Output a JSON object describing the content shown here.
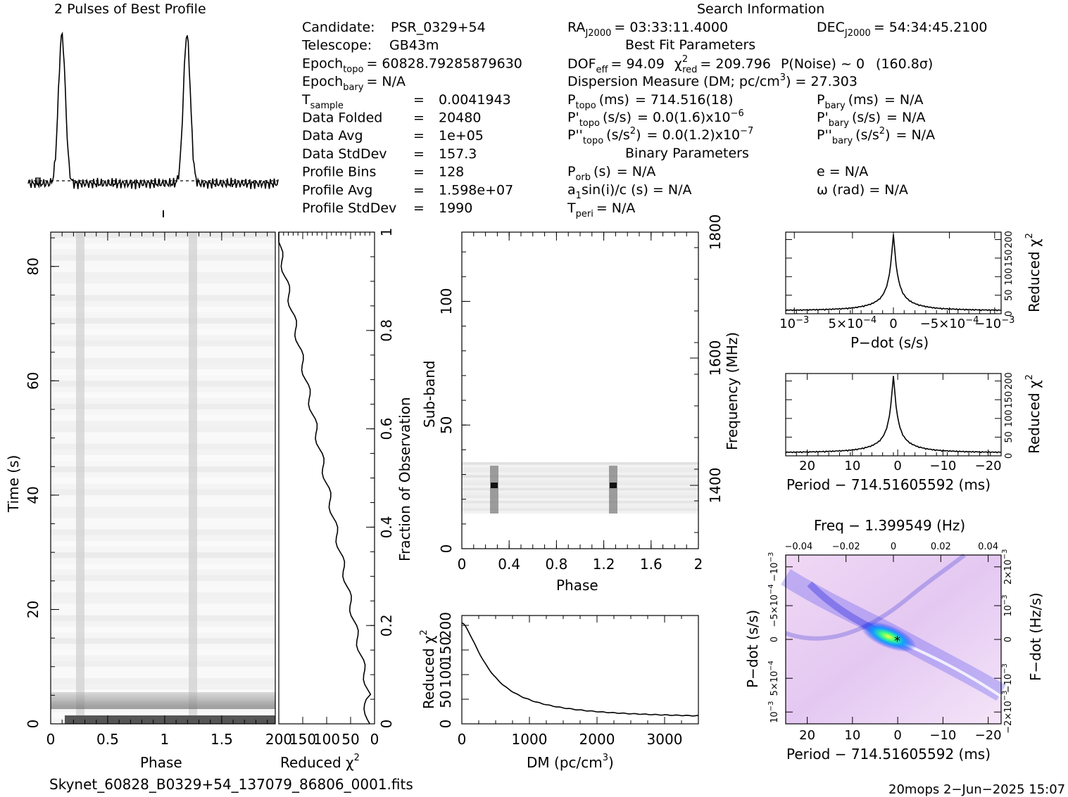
{
  "profile_title": "2 Pulses of Best Profile",
  "search_title": "Search Information",
  "info_col1": [
    {
      "label": "Candidate:",
      "value": "PSR_0329+54"
    },
    {
      "label": "Telescope:",
      "value": "GB43m"
    },
    {
      "label": "Epoch",
      "sub": "topo",
      "eq": "= 60828.79285879630"
    },
    {
      "label": "Epoch",
      "sub": "bary",
      "eq": "= N/A"
    },
    {
      "label": "T",
      "sub": "sample",
      "eq": "=",
      "value": "0.0041943"
    },
    {
      "label": "Data Folded",
      "eq": "=",
      "value": "20480"
    },
    {
      "label": "Data Avg",
      "eq": "=",
      "value": "1e+05"
    },
    {
      "label": "Data StdDev",
      "eq": "=",
      "value": "157.3"
    },
    {
      "label": "Profile Bins",
      "eq": "=",
      "value": "128"
    },
    {
      "label": "Profile Avg",
      "eq": "=",
      "value": "1.598e+07"
    },
    {
      "label": "Profile StdDev",
      "eq": "=",
      "value": "1990"
    }
  ],
  "ra": {
    "label": "RA",
    "sub": "J2000",
    "value": "= 03:33:11.4000"
  },
  "dec": {
    "label": "DEC",
    "sub": "J2000",
    "value": "= 54:34:45.2100"
  },
  "best_fit_title": "Best Fit Parameters",
  "dof": "DOF",
  "dof_sub": "eff",
  "dof_value": "= 94.09",
  "chi_label": "χ",
  "chi_sup": "2",
  "chi_sub": "red",
  "chi_value": "= 209.796",
  "pnoise": "P(Noise) ~ 0",
  "sigma": "(160.8σ)",
  "dm_text": "Dispersion Measure (DM; pc/cm",
  "dm_sup": "3",
  "dm_value": ") = 27.303",
  "ptopo": {
    "label": "P",
    "sub": "topo",
    "unit": "(ms)",
    "value": "=  714.516(18)"
  },
  "pbary": {
    "label": "P",
    "sub": "bary",
    "unit": "(ms)",
    "value": "= N/A"
  },
  "pdtopo": {
    "label": "P'",
    "sub": "topo",
    "unit": "(s/s)",
    "value": "= 0.0(1.6)x10",
    "exp": "−6"
  },
  "pdbary": {
    "label": "P'",
    "sub": "bary",
    "unit": "(s/s)",
    "value": "= N/A"
  },
  "pddtopo": {
    "label": "P''",
    "sub": "topo",
    "unit": "(s/s",
    "sup": "2",
    "unit2": ")",
    "value": "= 0.0(1.2)x10",
    "exp": "−7"
  },
  "pddbary": {
    "label": "P''",
    "sub": "bary",
    "unit": "(s/s",
    "sup": "2",
    "unit2": ")",
    "value": "= N/A"
  },
  "binary_title": "Binary Parameters",
  "porb": {
    "label": "P",
    "sub": "orb",
    "unit": "(s)",
    "value": "= N/A"
  },
  "ecc": "e = N/A",
  "a1": {
    "label": "a",
    "sub": "1",
    "rest": "sin(i)/c (s) = N/A"
  },
  "omega": "ω (rad) = N/A",
  "tperi": {
    "label": "T",
    "sub": "peri",
    "value": "= N/A"
  },
  "axes": {
    "phase": "Phase",
    "time": "Time (s)",
    "reduced_chi": "Reduced χ",
    "chi_sup": "2",
    "fraction": "Fraction of Observation",
    "subband": "Sub-band",
    "frequency": "Frequency (MHz)",
    "dm": "DM (pc/cm",
    "dm_sup": "3",
    "dm_close": ")",
    "pdot": "P−dot (s/s)",
    "period": "Period − 714.51605592 (ms)",
    "freq_top": "Freq − 1.399549 (Hz)",
    "fdot": "F−dot (Hz/s)"
  },
  "ticks": {
    "phase_x": [
      "0",
      "0.5",
      "1",
      "1.5"
    ],
    "time_y": [
      "0",
      "20",
      "40",
      "60",
      "80"
    ],
    "chi_x": [
      "200",
      "150",
      "100",
      "50",
      "0"
    ],
    "frac_y": [
      "0",
      "0.2",
      "0.4",
      "0.6",
      "0.8",
      "1"
    ],
    "sub_phase_x": [
      "0",
      "0.4",
      "0.8",
      "1.2",
      "1.6",
      "2"
    ],
    "subband_y": [
      "0",
      "50",
      "100"
    ],
    "freq_y": [
      "1400",
      "1600",
      "1800"
    ],
    "dm_x": [
      "0",
      "1000",
      "2000",
      "3000"
    ],
    "dm_y": [
      "0",
      "50",
      "100",
      "150",
      "200"
    ],
    "chi_small": [
      "0",
      "50",
      "100",
      "150",
      "200"
    ],
    "pdot_top_x": [
      "10",
      "5×10",
      "0",
      "−5×10",
      "−10"
    ],
    "period_x": [
      "20",
      "10",
      "0",
      "−10",
      "−20"
    ],
    "freq_top_x": [
      "−0.04",
      "−0.02",
      "0",
      "0.02",
      "0.04"
    ],
    "pdot_y": [
      "10",
      "5×10",
      "0",
      "−5×10",
      "−10"
    ],
    "fdot_y": [
      "−2×10",
      "−10",
      "0",
      "10",
      "2×10"
    ]
  },
  "footer_file": "Skynet_60828_B0329+54_137079_86806_0001.fits",
  "footer_stamp": "20mops   2−Jun−2025 15:07",
  "chart_data": [
    {
      "type": "line",
      "name": "profile",
      "x": [
        0,
        0.1,
        0.2,
        0.22,
        0.24,
        0.26,
        0.28,
        0.3,
        0.32,
        0.4,
        0.6,
        0.8,
        1.0,
        1.1,
        1.2,
        1.22,
        1.24,
        1.26,
        1.28,
        1.3,
        1.32,
        1.4,
        1.6,
        1.8,
        2.0
      ],
      "y": [
        0.04,
        0.08,
        0.14,
        0.55,
        0.8,
        0.94,
        0.92,
        0.2,
        0.08,
        0.06,
        0.05,
        0.05,
        0.04,
        0.08,
        0.14,
        0.55,
        0.8,
        0.94,
        0.92,
        0.2,
        0.08,
        0.06,
        0.05,
        0.05,
        0.04
      ],
      "title": "2 Pulses of Best Profile"
    },
    {
      "type": "heatmap",
      "name": "time-phase",
      "xlim": [
        0,
        2
      ],
      "ylim": [
        0,
        86
      ],
      "xlabel": "Phase",
      "ylabel": "Time (s)"
    },
    {
      "type": "line",
      "name": "cumulative-chi2",
      "x": [
        200,
        150,
        100,
        50,
        10,
        0
      ],
      "y": [
        0.98,
        0.82,
        0.55,
        0.28,
        0.06,
        0
      ],
      "xlim": [
        200,
        0
      ],
      "ylim": [
        0,
        1
      ],
      "xlabel": "Reduced χ2",
      "ylabel": "Fraction of Observation"
    },
    {
      "type": "heatmap",
      "name": "subband-phase",
      "xlim": [
        0,
        2
      ],
      "ylim": [
        0,
        128
      ],
      "xlabel": "Phase",
      "ylabel": "Sub-band",
      "y2label": "Frequency (MHz)"
    },
    {
      "type": "line",
      "name": "dm-chi2",
      "x": [
        0,
        250,
        500,
        750,
        1000,
        1500,
        2000,
        2500,
        3000,
        3500
      ],
      "y": [
        205,
        140,
        90,
        60,
        43,
        28,
        20,
        15,
        12,
        10
      ],
      "xlim": [
        0,
        3500
      ],
      "ylim": [
        0,
        220
      ],
      "xlabel": "DM (pc/cm3)",
      "ylabel": "Reduced χ2"
    },
    {
      "type": "line",
      "name": "pdot-chi2",
      "x": [
        0.001,
        0.0005,
        0.0001,
        2e-05,
        0,
        -2e-05,
        -0.0001,
        -0.0005,
        -0.001
      ],
      "y": [
        5,
        8,
        22,
        80,
        210,
        80,
        22,
        8,
        5
      ],
      "xlabel": "P−dot (s/s)",
      "ylabel": "Reduced χ2",
      "ylim": [
        0,
        220
      ]
    },
    {
      "type": "line",
      "name": "period-chi2",
      "x": [
        25,
        20,
        10,
        5,
        2,
        0,
        -2,
        -5,
        -10,
        -20,
        -25
      ],
      "y": [
        5,
        6,
        10,
        22,
        70,
        210,
        70,
        22,
        10,
        6,
        5
      ],
      "xlabel": "Period − 714.51605592 (ms)",
      "ylabel": "Reduced χ2",
      "ylim": [
        0,
        220
      ]
    },
    {
      "type": "heatmap",
      "name": "period-pdot",
      "xlim": [
        25,
        -22
      ],
      "ylim": [
        0.001,
        -0.001
      ],
      "xlabel": "Period − 714.51605592 (ms)",
      "ylabel": "P−dot (s/s)",
      "x2label": "Freq − 1.399549 (Hz)",
      "y2label": "F−dot (Hz/s)"
    }
  ]
}
